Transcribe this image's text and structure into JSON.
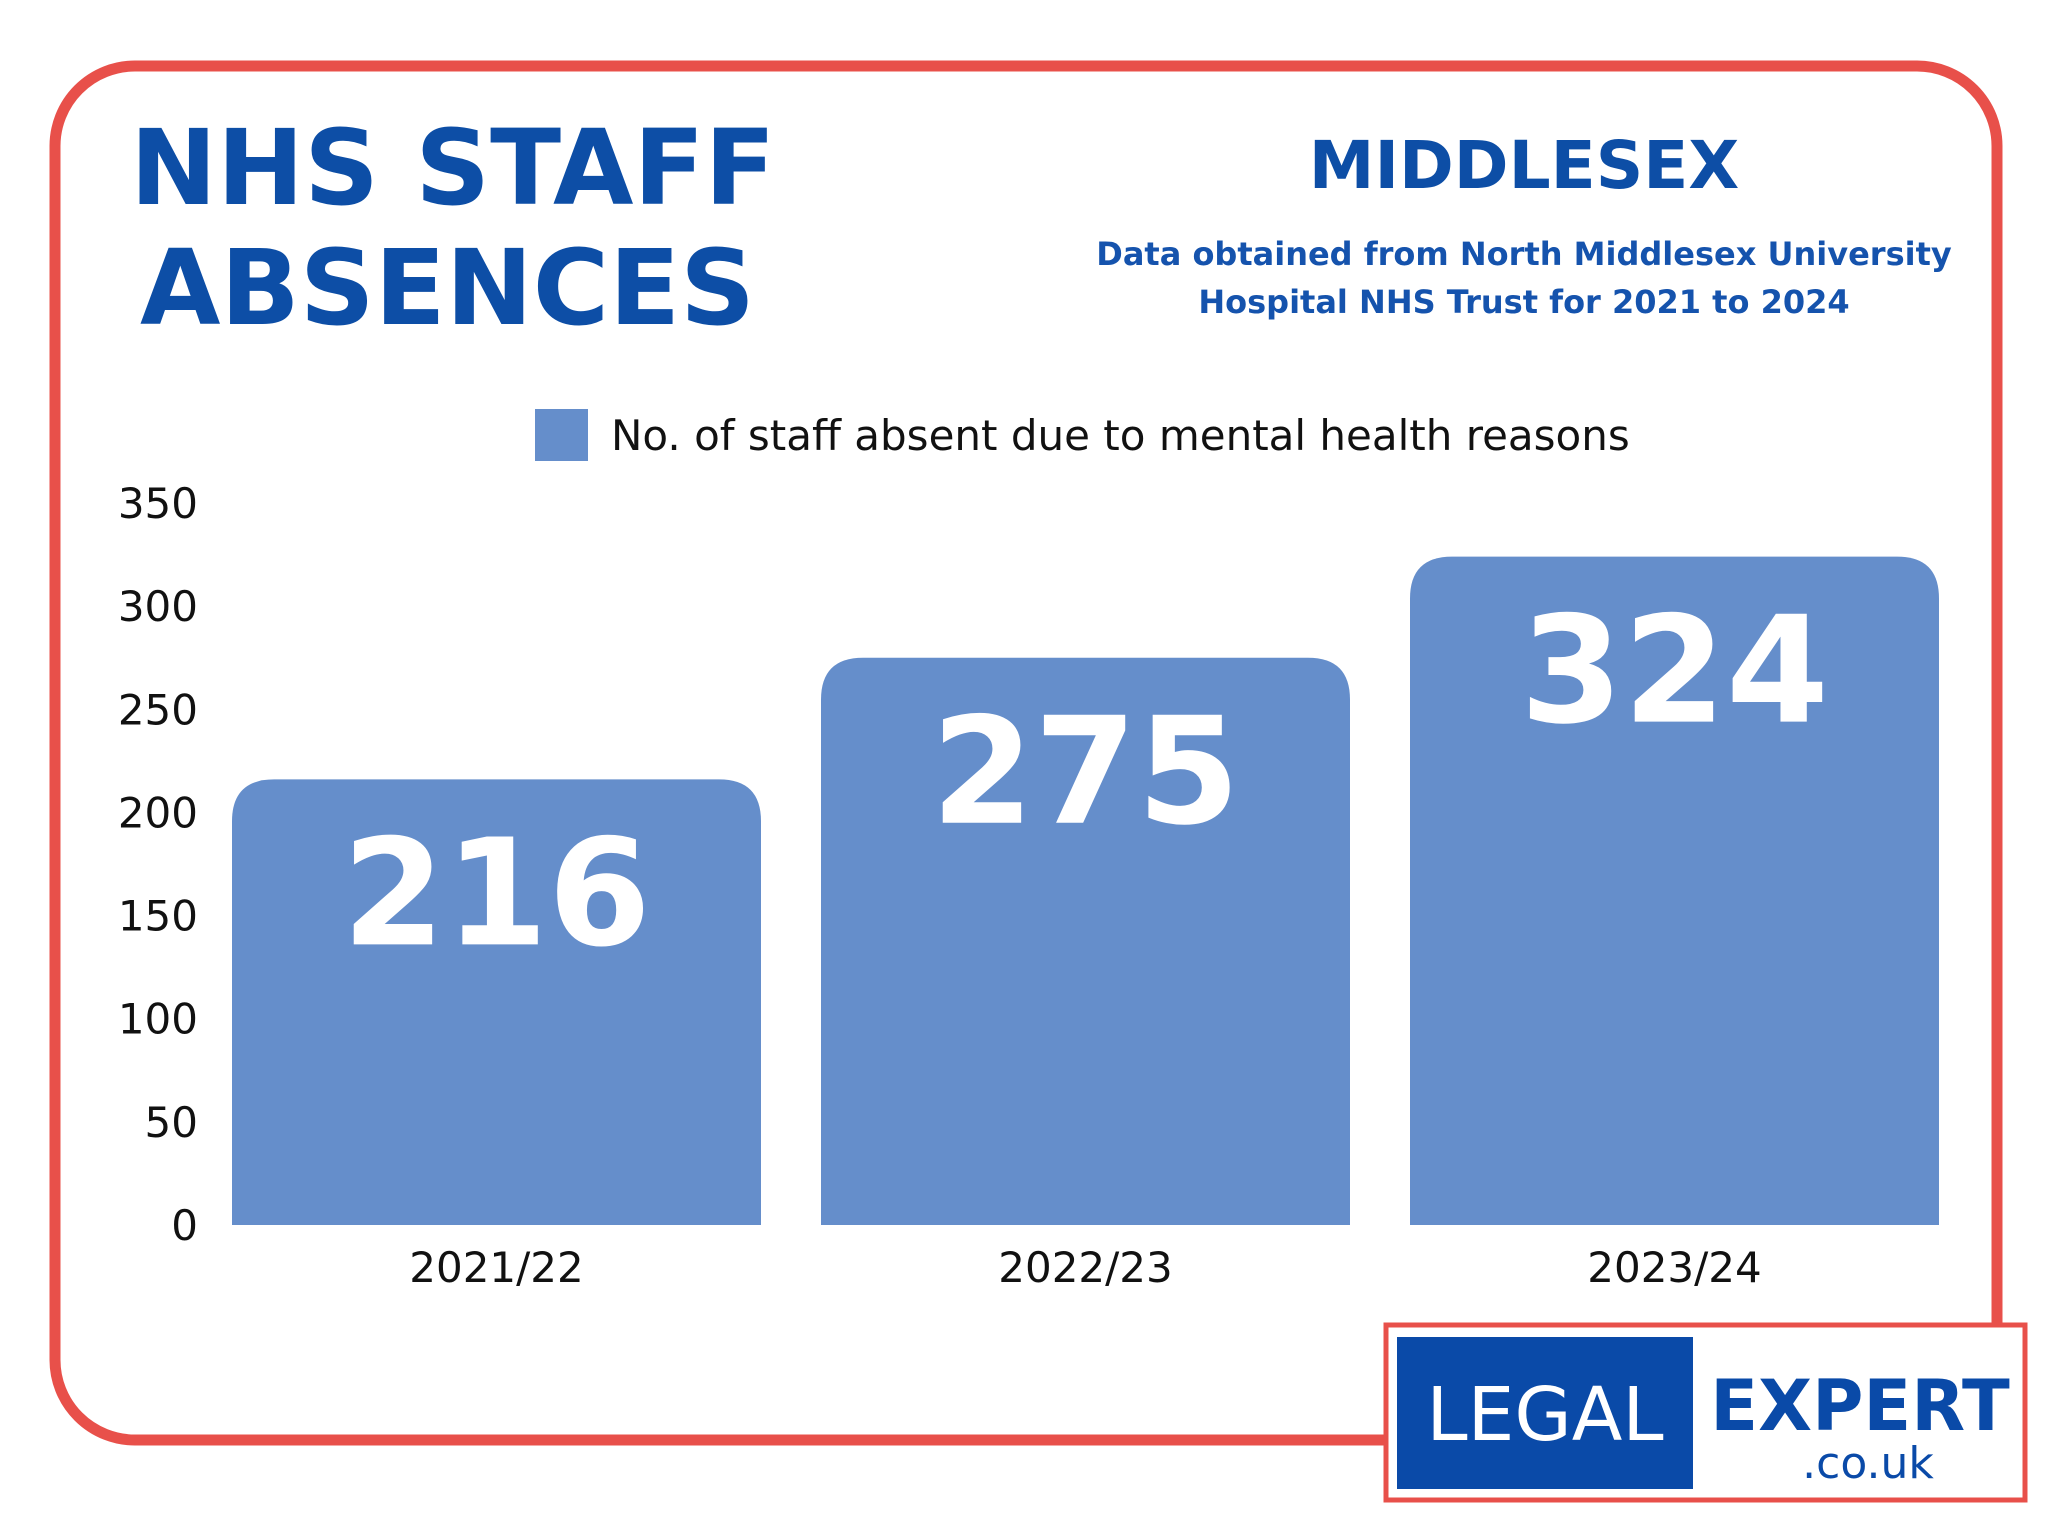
{
  "header": {
    "title_line1": "NHS STAFF",
    "title_line2": "ABSENCES",
    "region": "MIDDLESEX",
    "source_line1": "Data obtained from North Middlesex University",
    "source_line2": "Hospital NHS Trust for 2021 to 2024"
  },
  "colors": {
    "border": "#e8504a",
    "title": "#0d4ea6",
    "bar": "#658ecb",
    "logo_blue": "#0a4aa8"
  },
  "chart_data": {
    "type": "bar",
    "title": "NHS STAFF ABSENCES",
    "categories": [
      "2021/22",
      "2022/23",
      "2023/24"
    ],
    "series": [
      {
        "name": "No. of staff absent due to mental health reasons",
        "values": [
          216,
          275,
          324
        ]
      }
    ],
    "data_labels": [
      "216",
      "275",
      "324"
    ],
    "ylim": [
      0,
      350
    ],
    "yticks": [
      "0",
      "50",
      "100",
      "150",
      "200",
      "250",
      "300",
      "350"
    ],
    "xlabel": "",
    "ylabel": "",
    "grid": false,
    "legend": "top-center"
  },
  "logo": {
    "left": "LEGAL",
    "right": "EXPERT",
    "domain": ".co.uk"
  }
}
